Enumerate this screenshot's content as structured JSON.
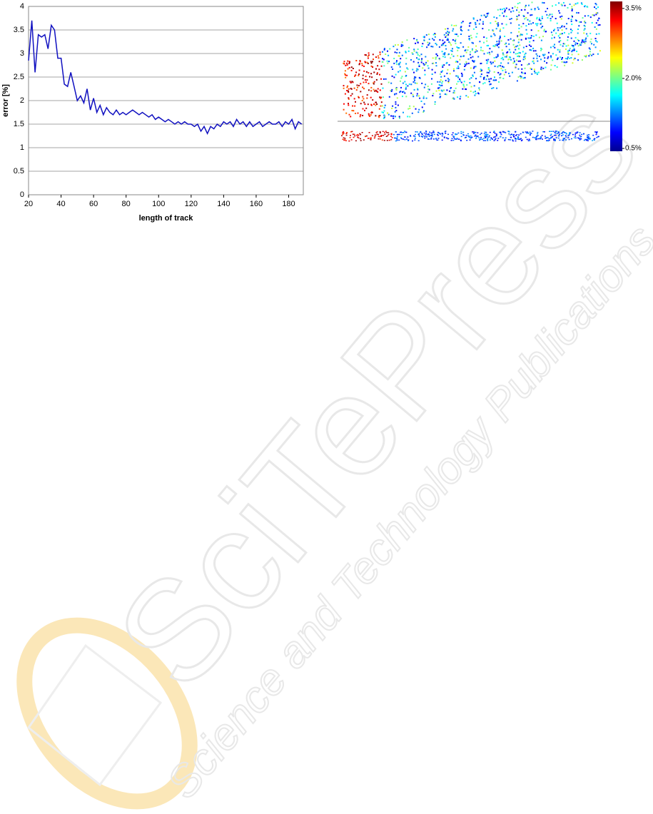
{
  "chart_data": [
    {
      "type": "line",
      "xlabel": "length of track",
      "ylabel": "error [%]",
      "color": "#1010c0",
      "x": [
        20,
        22,
        24,
        26,
        28,
        30,
        32,
        34,
        36,
        38,
        40,
        42,
        44,
        46,
        48,
        50,
        52,
        54,
        56,
        58,
        60,
        62,
        64,
        66,
        68,
        70,
        72,
        74,
        76,
        78,
        80,
        82,
        84,
        86,
        88,
        90,
        92,
        94,
        96,
        98,
        100,
        102,
        104,
        106,
        108,
        110,
        112,
        114,
        116,
        118,
        120,
        122,
        124,
        126,
        128,
        130,
        132,
        134,
        136,
        138,
        140,
        142,
        144,
        146,
        148,
        150,
        152,
        154,
        156,
        158,
        160,
        162,
        164,
        166,
        168,
        170,
        172,
        174,
        176,
        178,
        180,
        182,
        184,
        186,
        188
      ],
      "values": [
        2.85,
        3.7,
        2.6,
        3.4,
        3.35,
        3.4,
        3.1,
        3.6,
        3.5,
        2.9,
        2.9,
        2.35,
        2.3,
        2.6,
        2.3,
        2.0,
        2.1,
        1.95,
        2.25,
        1.8,
        2.05,
        1.75,
        1.9,
        1.7,
        1.85,
        1.75,
        1.7,
        1.8,
        1.7,
        1.75,
        1.7,
        1.75,
        1.8,
        1.75,
        1.7,
        1.75,
        1.7,
        1.65,
        1.7,
        1.6,
        1.65,
        1.6,
        1.55,
        1.6,
        1.55,
        1.5,
        1.55,
        1.5,
        1.55,
        1.5,
        1.5,
        1.45,
        1.5,
        1.35,
        1.45,
        1.3,
        1.45,
        1.4,
        1.5,
        1.45,
        1.55,
        1.5,
        1.55,
        1.45,
        1.6,
        1.5,
        1.55,
        1.45,
        1.55,
        1.45,
        1.5,
        1.55,
        1.45,
        1.5,
        1.55,
        1.5,
        1.5,
        1.55,
        1.45,
        1.55,
        1.5,
        1.6,
        1.4,
        1.55,
        1.5
      ],
      "xlim": [
        20,
        189
      ],
      "xticks": [
        20,
        40,
        60,
        80,
        100,
        120,
        140,
        160,
        180
      ],
      "ylim": [
        0,
        4
      ],
      "yticks": [
        0,
        0.5,
        1,
        1.5,
        2,
        2.5,
        3,
        3.5,
        4
      ],
      "grid": true
    },
    {
      "type": "colorbar",
      "ylim": [
        0.44,
        3.65
      ],
      "yticks": [
        {
          "value": 3.5,
          "label": "3.5%"
        },
        {
          "value": 2.0,
          "label": "2.0%"
        },
        {
          "value": 0.5,
          "label": "0.5%"
        }
      ]
    }
  ],
  "watermark": {
    "title": "SciTePress",
    "subtitle": "Science and Technology Publications"
  }
}
